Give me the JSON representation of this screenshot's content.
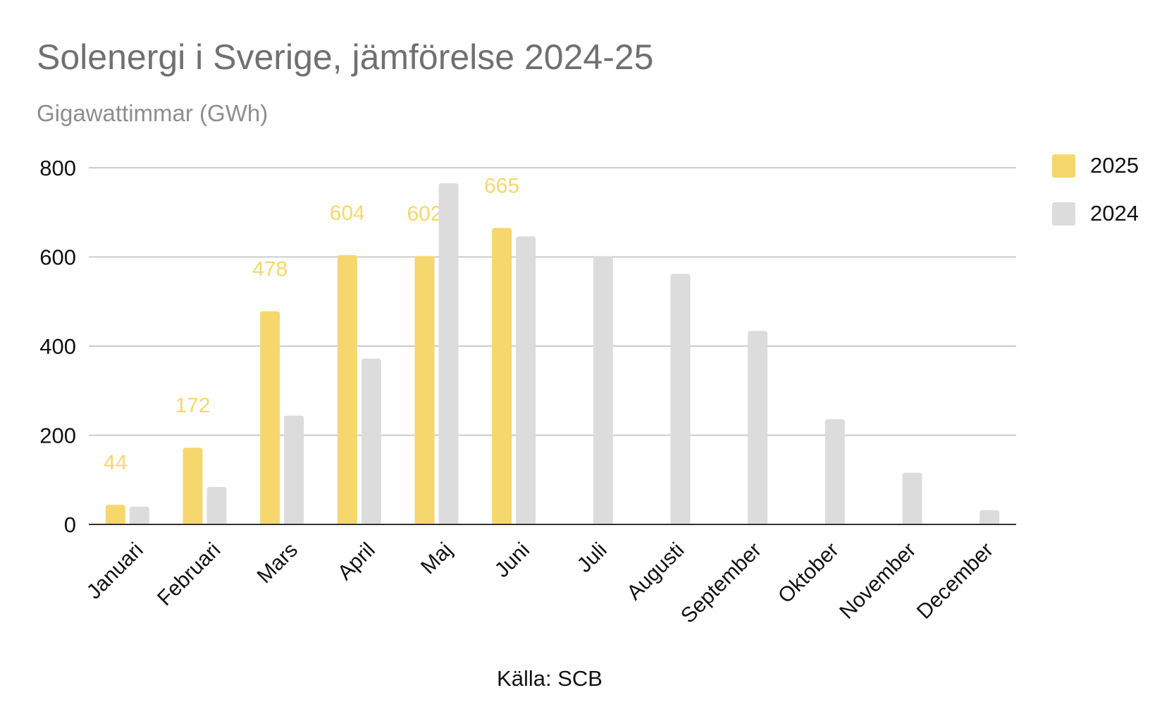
{
  "chart_data": {
    "type": "bar",
    "title": "Solenergi i Sverige, jämförelse 2024-25",
    "subtitle": "Gigawattimmar (GWh)",
    "source": "Källa: SCB",
    "categories": [
      "Januari",
      "Februari",
      "Mars",
      "April",
      "Maj",
      "Juni",
      "Juli",
      "Augusti",
      "September",
      "Oktober",
      "November",
      "December"
    ],
    "series": [
      {
        "name": "2025",
        "color": "#f5d76e",
        "show_data_labels": true,
        "values": [
          44,
          172,
          478,
          604,
          602,
          665,
          null,
          null,
          null,
          null,
          null,
          null
        ]
      },
      {
        "name": "2024",
        "color": "#dcdcdc",
        "show_data_labels": false,
        "values": [
          40,
          84,
          244,
          372,
          765,
          646,
          602,
          562,
          434,
          236,
          116,
          32
        ]
      }
    ],
    "ylim": [
      0,
      800
    ],
    "yticks": [
      0,
      200,
      400,
      600,
      800
    ],
    "grid": true,
    "legend_position": "right"
  }
}
